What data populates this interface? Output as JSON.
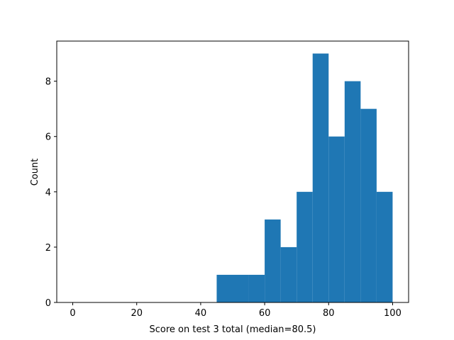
{
  "chart_data": {
    "type": "histogram",
    "xlabel": "Score on test 3 total (median=80.5)",
    "ylabel": "Count",
    "bins": [
      45,
      50,
      55,
      60,
      65,
      70,
      75,
      80,
      85,
      90,
      95,
      100
    ],
    "values": [
      1,
      1,
      1,
      3,
      2,
      4,
      9,
      6,
      8,
      7,
      4
    ],
    "color": "#1f77b4",
    "xlim": [
      -5,
      105
    ],
    "xticks": [
      0,
      20,
      40,
      60,
      80,
      100
    ],
    "ylim": [
      0,
      9.45
    ],
    "yticks": [
      0,
      2,
      4,
      6,
      8
    ]
  }
}
